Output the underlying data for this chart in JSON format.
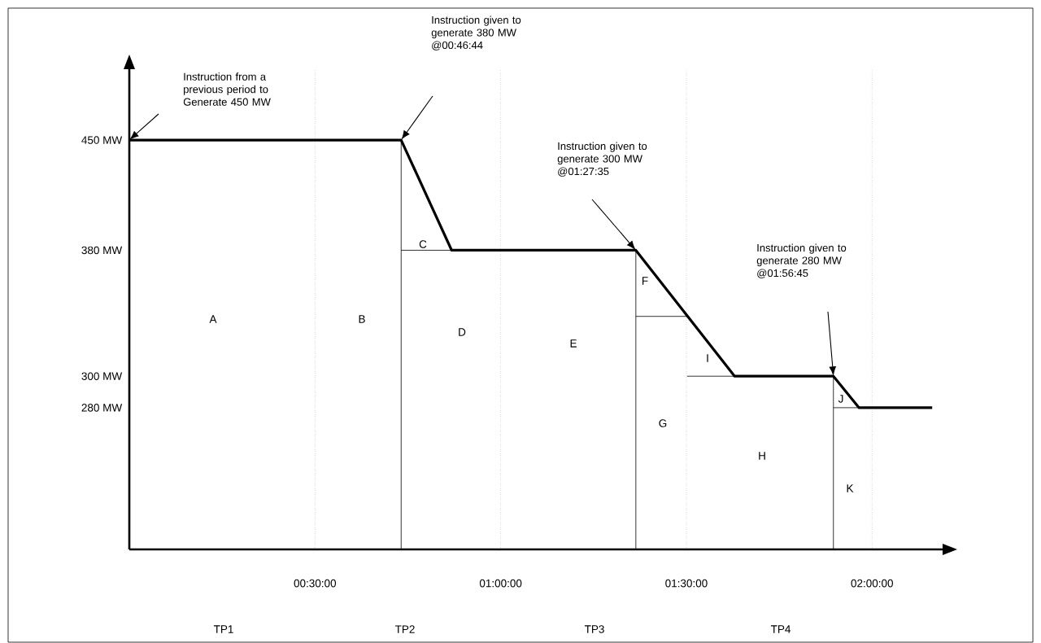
{
  "chart_data": {
    "type": "line",
    "x": [
      0,
      0.732,
      0.868,
      1.364,
      1.63,
      1.896,
      1.965,
      2.162
    ],
    "series": [
      {
        "color": "#000000",
        "values": [
          450,
          450,
          380,
          380,
          300,
          300,
          280,
          280
        ]
      },
      {
        "color": "#000000",
        "x": [
          0.732,
          0.732
        ],
        "values": [
          190,
          450
        ]
      },
      {
        "color": "#000000",
        "x": [
          0.732,
          0.868
        ],
        "values": [
          380,
          380
        ]
      },
      {
        "color": "#000000",
        "x": [
          1.364,
          1.364
        ],
        "values": [
          190,
          380
        ]
      },
      {
        "color": "#000000",
        "x": [
          1.364,
          1.502
        ],
        "values": [
          338,
          338
        ]
      },
      {
        "color": "#000000",
        "x": [
          1.502,
          1.63
        ],
        "values": [
          300,
          300
        ]
      },
      {
        "color": "#000000",
        "x": [
          1.896,
          1.896
        ],
        "values": [
          190,
          300
        ]
      },
      {
        "color": "#000000",
        "x": [
          1.896,
          1.965
        ],
        "values": [
          280,
          280
        ]
      }
    ],
    "xlim": [
      0,
      2.19
    ],
    "ylim": [
      190,
      495
    ],
    "xticks": [
      {
        "value": 0.5,
        "label": "00:30:00"
      },
      {
        "value": 1,
        "label": "01:00:00"
      },
      {
        "value": 1.5,
        "label": "01:30:00"
      },
      {
        "value": 2,
        "label": "02:00:00"
      }
    ],
    "yticks": [
      {
        "value": 280,
        "label": "280 MW"
      },
      {
        "value": 300,
        "label": "300 MW"
      },
      {
        "value": 380,
        "label": "380 MW"
      },
      {
        "value": 450,
        "label": "450 MW"
      }
    ],
    "grid": "x",
    "annotations": [
      "Instruction from a previous period to Generate 450 MW",
      "Instruction given to generate 380 MW @00:46:44",
      "Instruction given to generate 300 MW @01:27:35",
      "Instruction given to generate 280 MW @01:56:45",
      "A",
      "B",
      "C",
      "D",
      "E",
      "F",
      "G",
      "H",
      "I",
      "J",
      "K",
      "TP1",
      "TP2",
      "TP3",
      "TP4"
    ]
  }
}
